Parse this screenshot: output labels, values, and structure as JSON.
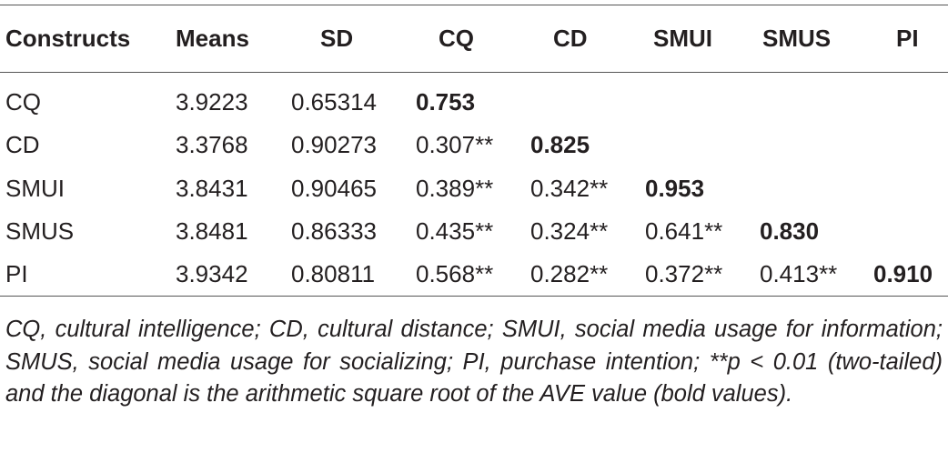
{
  "table": {
    "header": [
      "Constructs",
      "Means",
      "SD",
      "CQ",
      "CD",
      "SMUI",
      "SMUS",
      "PI"
    ],
    "rows": [
      [
        "CQ",
        "3.9223",
        "0.65314",
        "0.753"
      ],
      [
        "CD",
        "3.3768",
        "0.90273",
        "0.307**",
        "0.825"
      ],
      [
        "SMUI",
        "3.8431",
        "0.90465",
        "0.389**",
        "0.342**",
        "0.953"
      ],
      [
        "SMUS",
        "3.8481",
        "0.86333",
        "0.435**",
        "0.324**",
        "0.641**",
        "0.830"
      ],
      [
        "PI",
        "3.9342",
        "0.80811",
        "0.568**",
        "0.282**",
        "0.372**",
        "0.413**",
        "0.910"
      ]
    ],
    "note": "CQ, cultural intelligence; CD, cultural distance; SMUI, social media usage for information; SMUS, social media usage for socializing; PI, purchase intention; **p < 0.01 (two-tailed) and the diagonal is the arithmetic square root of the AVE value (bold values)."
  }
}
